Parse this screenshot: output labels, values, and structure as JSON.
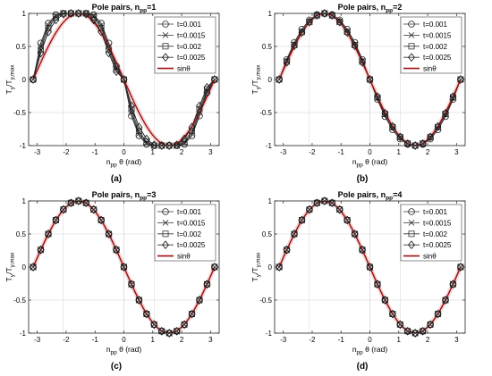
{
  "figure": {
    "x_tick_labels": [
      "-3",
      "-2",
      "-1",
      "0",
      "1",
      "2",
      "3"
    ],
    "y_tick_labels": [
      "-1",
      "-0.5",
      "0",
      "0.5",
      "1"
    ],
    "xlabel": {
      "main": "n",
      "sub": "pp",
      "suffix": " θ (rad)"
    },
    "ylabel": {
      "a": "T",
      "a_sub": "y",
      "sep": "/T",
      "b_sub": "y,max"
    }
  },
  "chart_data": [
    {
      "type": "line",
      "panel_label": "(a)",
      "title": "Pole pairs, n",
      "title_sub": "pp",
      "title_suffix": "=1",
      "n_pp": 1,
      "xlim": [
        -3.3,
        3.3
      ],
      "ylim": [
        -1,
        1
      ],
      "legend_position": "upper-right",
      "x": [
        -3.1416,
        -2.8798,
        -2.618,
        -2.3562,
        -2.0944,
        -1.8326,
        -1.5708,
        -1.309,
        -1.0472,
        -0.7854,
        -0.5236,
        -0.2618,
        0,
        0.2618,
        0.5236,
        0.7854,
        1.0472,
        1.309,
        1.5708,
        1.8326,
        2.0944,
        2.3562,
        2.618,
        2.8798,
        3.1416
      ],
      "series": [
        {
          "name": "t=0.001",
          "marker": "circle",
          "values": [
            0,
            0.55,
            0.85,
            0.98,
            1,
            1,
            1,
            1,
            0.98,
            0.85,
            0.55,
            0.2,
            0,
            -0.55,
            -0.85,
            -0.98,
            -1,
            -1,
            -1,
            -1,
            -0.98,
            -0.85,
            -0.55,
            -0.2,
            0
          ]
        },
        {
          "name": "t=0.0015",
          "marker": "x",
          "values": [
            0,
            0.5,
            0.82,
            0.96,
            1,
            1,
            1,
            1,
            0.96,
            0.82,
            0.5,
            0.18,
            0,
            -0.5,
            -0.82,
            -0.96,
            -1,
            -1,
            -1,
            -1,
            -0.96,
            -0.82,
            -0.5,
            -0.18,
            0
          ]
        },
        {
          "name": "t=0.002",
          "marker": "square",
          "values": [
            0,
            0.45,
            0.78,
            0.94,
            1,
            1,
            1,
            1,
            0.94,
            0.78,
            0.45,
            0.15,
            0,
            -0.45,
            -0.78,
            -0.94,
            -1,
            -1,
            -1,
            -1,
            -0.94,
            -0.78,
            -0.45,
            -0.15,
            0
          ]
        },
        {
          "name": "t=0.0025",
          "marker": "diamond",
          "values": [
            0,
            0.4,
            0.72,
            0.9,
            0.99,
            1,
            1,
            0.99,
            0.9,
            0.72,
            0.4,
            0.12,
            0,
            -0.4,
            -0.72,
            -0.9,
            -0.99,
            -1,
            -1,
            -0.99,
            -0.9,
            -0.72,
            -0.4,
            -0.12,
            0
          ]
        }
      ],
      "reference": {
        "name": "sinθ",
        "function": "-sin(x)",
        "color": "#a01010"
      }
    },
    {
      "type": "line",
      "panel_label": "(b)",
      "title": "Pole pairs, n",
      "title_sub": "pp",
      "title_suffix": "=2",
      "n_pp": 2,
      "xlim": [
        -3.3,
        3.3
      ],
      "ylim": [
        -1,
        1
      ],
      "legend_position": "upper-right",
      "x": [
        -3.1416,
        -2.8798,
        -2.618,
        -2.3562,
        -2.0944,
        -1.8326,
        -1.5708,
        -1.309,
        -1.0472,
        -0.7854,
        -0.5236,
        -0.2618,
        0,
        0.2618,
        0.5236,
        0.7854,
        1.0472,
        1.309,
        1.5708,
        1.8326,
        2.0944,
        2.3562,
        2.618,
        2.8798,
        3.1416
      ],
      "series": [
        {
          "name": "t=0.001",
          "marker": "circle",
          "values": [
            0,
            0.3,
            0.56,
            0.76,
            0.9,
            0.98,
            1,
            0.98,
            0.9,
            0.76,
            0.56,
            0.3,
            0,
            -0.3,
            -0.56,
            -0.76,
            -0.9,
            -0.98,
            -1,
            -0.98,
            -0.9,
            -0.76,
            -0.56,
            -0.3,
            0
          ]
        },
        {
          "name": "t=0.0015",
          "marker": "x",
          "values": [
            0,
            0.28,
            0.53,
            0.73,
            0.88,
            0.97,
            1,
            0.97,
            0.88,
            0.73,
            0.53,
            0.28,
            0,
            -0.28,
            -0.53,
            -0.73,
            -0.88,
            -0.97,
            -1,
            -0.97,
            -0.88,
            -0.73,
            -0.53,
            -0.28,
            0
          ]
        },
        {
          "name": "t=0.002",
          "marker": "square",
          "values": [
            0,
            0.27,
            0.52,
            0.72,
            0.87,
            0.97,
            1,
            0.97,
            0.87,
            0.72,
            0.52,
            0.27,
            0,
            -0.27,
            -0.52,
            -0.72,
            -0.87,
            -0.97,
            -1,
            -0.97,
            -0.87,
            -0.72,
            -0.52,
            -0.27,
            0
          ]
        },
        {
          "name": "t=0.0025",
          "marker": "diamond",
          "values": [
            0,
            0.26,
            0.51,
            0.71,
            0.87,
            0.97,
            1,
            0.97,
            0.87,
            0.71,
            0.51,
            0.26,
            0,
            -0.26,
            -0.51,
            -0.71,
            -0.87,
            -0.97,
            -1,
            -0.97,
            -0.87,
            -0.71,
            -0.51,
            -0.26,
            0
          ]
        }
      ],
      "reference": {
        "name": "sinθ",
        "function": "-sin(x)",
        "color": "#a01010"
      }
    },
    {
      "type": "line",
      "panel_label": "(c)",
      "title": "Pole pairs, n",
      "title_sub": "pp",
      "title_suffix": "=3",
      "n_pp": 3,
      "xlim": [
        -3.3,
        3.3
      ],
      "ylim": [
        -1,
        1
      ],
      "legend_position": "upper-right",
      "x": [
        -3.1416,
        -2.8798,
        -2.618,
        -2.3562,
        -2.0944,
        -1.8326,
        -1.5708,
        -1.309,
        -1.0472,
        -0.7854,
        -0.5236,
        -0.2618,
        0,
        0.2618,
        0.5236,
        0.7854,
        1.0472,
        1.309,
        1.5708,
        1.8326,
        2.0944,
        2.3562,
        2.618,
        2.8798,
        3.1416
      ],
      "series": [
        {
          "name": "t=0.001",
          "marker": "circle",
          "values": [
            0,
            0.26,
            0.5,
            0.71,
            0.87,
            0.97,
            1,
            0.97,
            0.87,
            0.71,
            0.5,
            0.26,
            0,
            -0.26,
            -0.5,
            -0.71,
            -0.87,
            -0.97,
            -1,
            -0.97,
            -0.87,
            -0.71,
            -0.5,
            -0.26,
            0
          ]
        },
        {
          "name": "t=0.0015",
          "marker": "x",
          "values": [
            0,
            0.26,
            0.5,
            0.71,
            0.87,
            0.97,
            1,
            0.97,
            0.87,
            0.71,
            0.5,
            0.26,
            0,
            -0.26,
            -0.5,
            -0.71,
            -0.87,
            -0.97,
            -1,
            -0.97,
            -0.87,
            -0.71,
            -0.5,
            -0.26,
            0
          ]
        },
        {
          "name": "t=0.002",
          "marker": "square",
          "values": [
            0,
            0.26,
            0.5,
            0.71,
            0.87,
            0.97,
            1,
            0.97,
            0.87,
            0.71,
            0.5,
            0.26,
            0,
            -0.26,
            -0.5,
            -0.71,
            -0.87,
            -0.97,
            -1,
            -0.97,
            -0.87,
            -0.71,
            -0.5,
            -0.26,
            0
          ]
        },
        {
          "name": "t=0.0025",
          "marker": "diamond",
          "values": [
            0,
            0.26,
            0.5,
            0.71,
            0.87,
            0.97,
            1,
            0.97,
            0.87,
            0.71,
            0.5,
            0.26,
            0,
            -0.26,
            -0.5,
            -0.71,
            -0.87,
            -0.97,
            -1,
            -0.97,
            -0.87,
            -0.71,
            -0.5,
            -0.26,
            0
          ]
        }
      ],
      "reference": {
        "name": "sinθ",
        "function": "-sin(x)",
        "color": "#a01010"
      }
    },
    {
      "type": "line",
      "panel_label": "(d)",
      "title": "Pole pairs, n",
      "title_sub": "pp",
      "title_suffix": "=4",
      "n_pp": 4,
      "xlim": [
        -3.3,
        3.3
      ],
      "ylim": [
        -1,
        1
      ],
      "legend_position": "upper-right",
      "x": [
        -3.1416,
        -2.8798,
        -2.618,
        -2.3562,
        -2.0944,
        -1.8326,
        -1.5708,
        -1.309,
        -1.0472,
        -0.7854,
        -0.5236,
        -0.2618,
        0,
        0.2618,
        0.5236,
        0.7854,
        1.0472,
        1.309,
        1.5708,
        1.8326,
        2.0944,
        2.3562,
        2.618,
        2.8798,
        3.1416
      ],
      "series": [
        {
          "name": "t=0.001",
          "marker": "circle",
          "values": [
            0,
            0.26,
            0.5,
            0.71,
            0.87,
            0.97,
            1,
            0.97,
            0.87,
            0.71,
            0.5,
            0.26,
            0,
            -0.26,
            -0.5,
            -0.71,
            -0.87,
            -0.97,
            -1,
            -0.97,
            -0.87,
            -0.71,
            -0.5,
            -0.26,
            0
          ]
        },
        {
          "name": "t=0.0015",
          "marker": "x",
          "values": [
            0,
            0.26,
            0.5,
            0.71,
            0.87,
            0.97,
            1,
            0.97,
            0.87,
            0.71,
            0.5,
            0.26,
            0,
            -0.26,
            -0.5,
            -0.71,
            -0.87,
            -0.97,
            -1,
            -0.97,
            -0.87,
            -0.71,
            -0.5,
            -0.26,
            0
          ]
        },
        {
          "name": "t=0.002",
          "marker": "square",
          "values": [
            0,
            0.26,
            0.5,
            0.71,
            0.87,
            0.97,
            1,
            0.97,
            0.87,
            0.71,
            0.5,
            0.26,
            0,
            -0.26,
            -0.5,
            -0.71,
            -0.87,
            -0.97,
            -1,
            -0.97,
            -0.87,
            -0.71,
            -0.5,
            -0.26,
            0
          ]
        },
        {
          "name": "t=0.0025",
          "marker": "diamond",
          "values": [
            0,
            0.26,
            0.5,
            0.71,
            0.87,
            0.97,
            1,
            0.97,
            0.87,
            0.71,
            0.5,
            0.26,
            0,
            -0.26,
            -0.5,
            -0.71,
            -0.87,
            -0.97,
            -1,
            -0.97,
            -0.87,
            -0.71,
            -0.5,
            -0.26,
            0
          ]
        }
      ],
      "reference": {
        "name": "sinθ",
        "function": "-sin(x)",
        "color": "#a01010"
      }
    }
  ]
}
